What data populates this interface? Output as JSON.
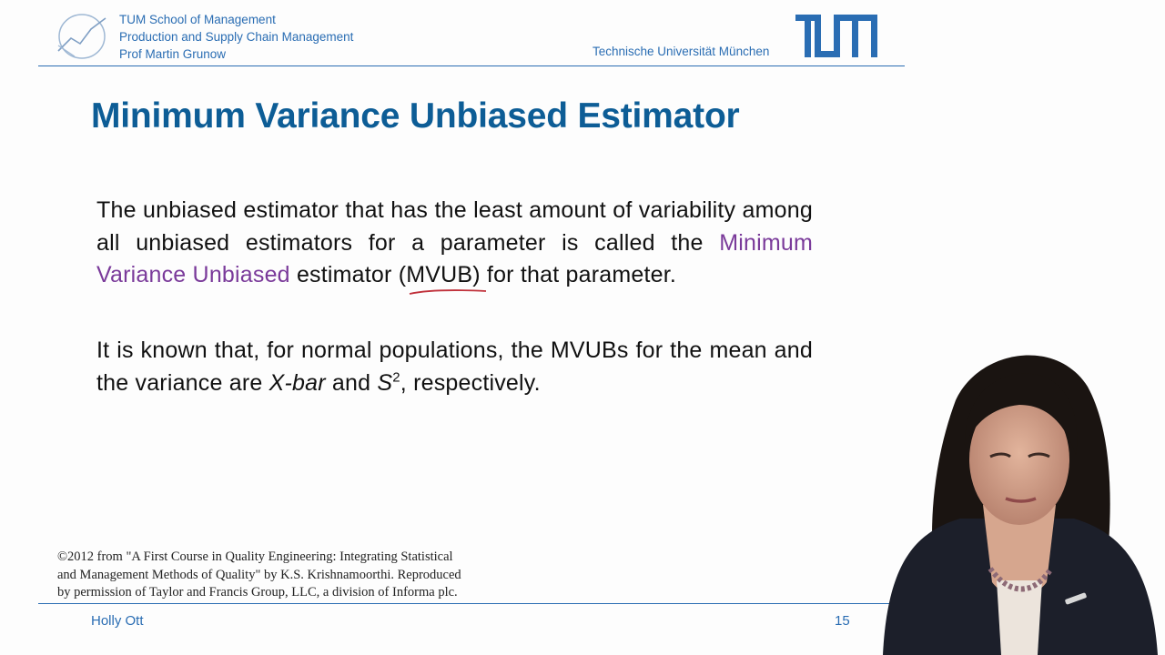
{
  "header": {
    "lines": [
      "TUM School of Management",
      "Production and Supply Chain Management",
      "Prof Martin Grunow"
    ],
    "university": "Technische Universität München",
    "logo_icon": "tum-logo",
    "chair_icon": "chair-logo-icon"
  },
  "slide": {
    "title": "Minimum Variance Unbiased Estimator",
    "para1": {
      "part1": "The unbiased  estimator that has the least amount of variability among all unbiased estimators for a parameter is called the ",
      "highlight": "Minimum Variance Unbiased",
      "part2": " estimator (",
      "abbr": "MVUB",
      "part3": ") for that parameter."
    },
    "para2": {
      "part1": "It is known that, for normal populations, the MVUBs for the mean and the variance are ",
      "xbar": "X-bar",
      "and": " and ",
      "s": "S",
      "s_sup": "2",
      "end": ", respectively."
    },
    "citation": [
      "©2012 from \"A First Course in Quality Engineering: Integrating Statistical",
      "and Management Methods of Quality\" by K.S. Krishnamoorthi. Reproduced",
      "by permission of Taylor and Francis Group, LLC, a division of Informa plc."
    ]
  },
  "footer": {
    "presenter": "Holly Ott",
    "page": "15"
  },
  "colors": {
    "tum_blue": "#2a6db3",
    "title_blue": "#0d5d96",
    "highlight_purple": "#7a3a9a",
    "annotation_red": "#c0303a"
  }
}
